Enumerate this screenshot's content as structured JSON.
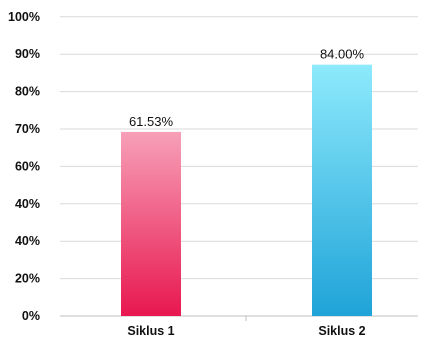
{
  "chart_data": {
    "type": "bar",
    "title": "",
    "xlabel": "",
    "ylabel": "",
    "y_tick_labels": [
      "0%",
      "20%",
      "40%",
      "40%",
      "60%",
      "70%",
      "80%",
      "90%",
      "100%"
    ],
    "categories": [
      "Siklus 1",
      "Siklus 2"
    ],
    "values": [
      61.53,
      84.0
    ],
    "data_labels": [
      "61.53%",
      "84.00%"
    ],
    "grid": true,
    "legend": "none"
  },
  "colors": {
    "bar_1_top": "#f7a0b8",
    "bar_1_bottom": "#e8174f",
    "bar_2_top": "#8eeafc",
    "bar_2_bottom": "#1fa3d8",
    "grid": "#d9d9d9",
    "axis": "#bfbfbf"
  }
}
